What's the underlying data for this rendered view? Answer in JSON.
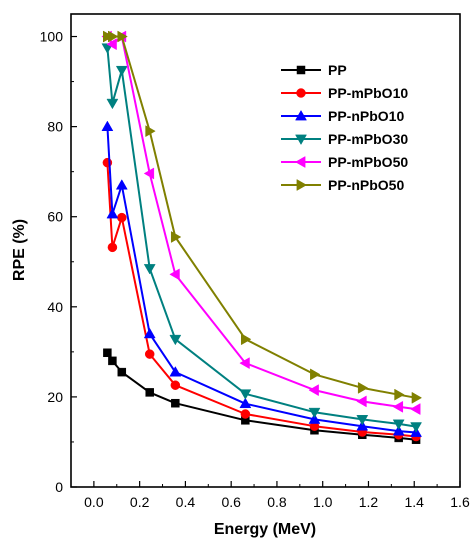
{
  "chart_data": {
    "type": "line",
    "xlabel": "Energy (MeV)",
    "ylabel": "RPE (%)",
    "xlim": [
      -0.1,
      1.6
    ],
    "ylim": [
      0,
      105
    ],
    "xticks": [
      0.0,
      0.2,
      0.4,
      0.6,
      0.8,
      1.0,
      1.2,
      1.4,
      1.6
    ],
    "xtick_labels": [
      "0.0",
      "0.2",
      "0.4",
      "0.6",
      "0.8",
      "1.0",
      "1.2",
      "1.4",
      "1.6"
    ],
    "yticks": [
      0,
      20,
      40,
      60,
      80,
      100
    ],
    "ytick_labels": [
      "0",
      "20",
      "40",
      "60",
      "80",
      "100"
    ],
    "grid": false,
    "legend_position": "top-right",
    "x": [
      0.059,
      0.081,
      0.122,
      0.244,
      0.356,
      0.662,
      0.964,
      1.173,
      1.332,
      1.408
    ],
    "series": [
      {
        "name": "PP",
        "color": "#000000",
        "marker": "square",
        "values": [
          29.8,
          28.0,
          25.5,
          21.0,
          18.6,
          14.8,
          12.6,
          11.6,
          10.9,
          10.5
        ]
      },
      {
        "name": "PP-mPbO10",
        "color": "#ff0000",
        "marker": "circle",
        "values": [
          72.0,
          53.2,
          59.8,
          29.5,
          22.6,
          16.2,
          13.5,
          12.2,
          11.6,
          11.2
        ]
      },
      {
        "name": "PP-nPbO10",
        "color": "#0000ff",
        "marker": "triangle-up",
        "values": [
          80.0,
          60.6,
          67.0,
          34.0,
          25.5,
          18.5,
          15.0,
          13.5,
          12.4,
          12.1
        ]
      },
      {
        "name": "PP-mPbO30",
        "color": "#008080",
        "marker": "triangle-down",
        "values": [
          97.5,
          85.2,
          92.5,
          48.5,
          32.8,
          20.7,
          16.6,
          15.0,
          14.0,
          13.4
        ]
      },
      {
        "name": "PP-mPbO50",
        "color": "#ff00ff",
        "marker": "triangle-left",
        "values": [
          100.0,
          98.3,
          100.0,
          69.6,
          47.2,
          27.5,
          21.5,
          19.0,
          17.8,
          17.3
        ]
      },
      {
        "name": "PP-nPbO50",
        "color": "#808000",
        "marker": "triangle-right",
        "values": [
          100.0,
          100.0,
          100.0,
          79.0,
          55.5,
          32.8,
          25.0,
          22.0,
          20.5,
          19.8
        ]
      }
    ]
  }
}
